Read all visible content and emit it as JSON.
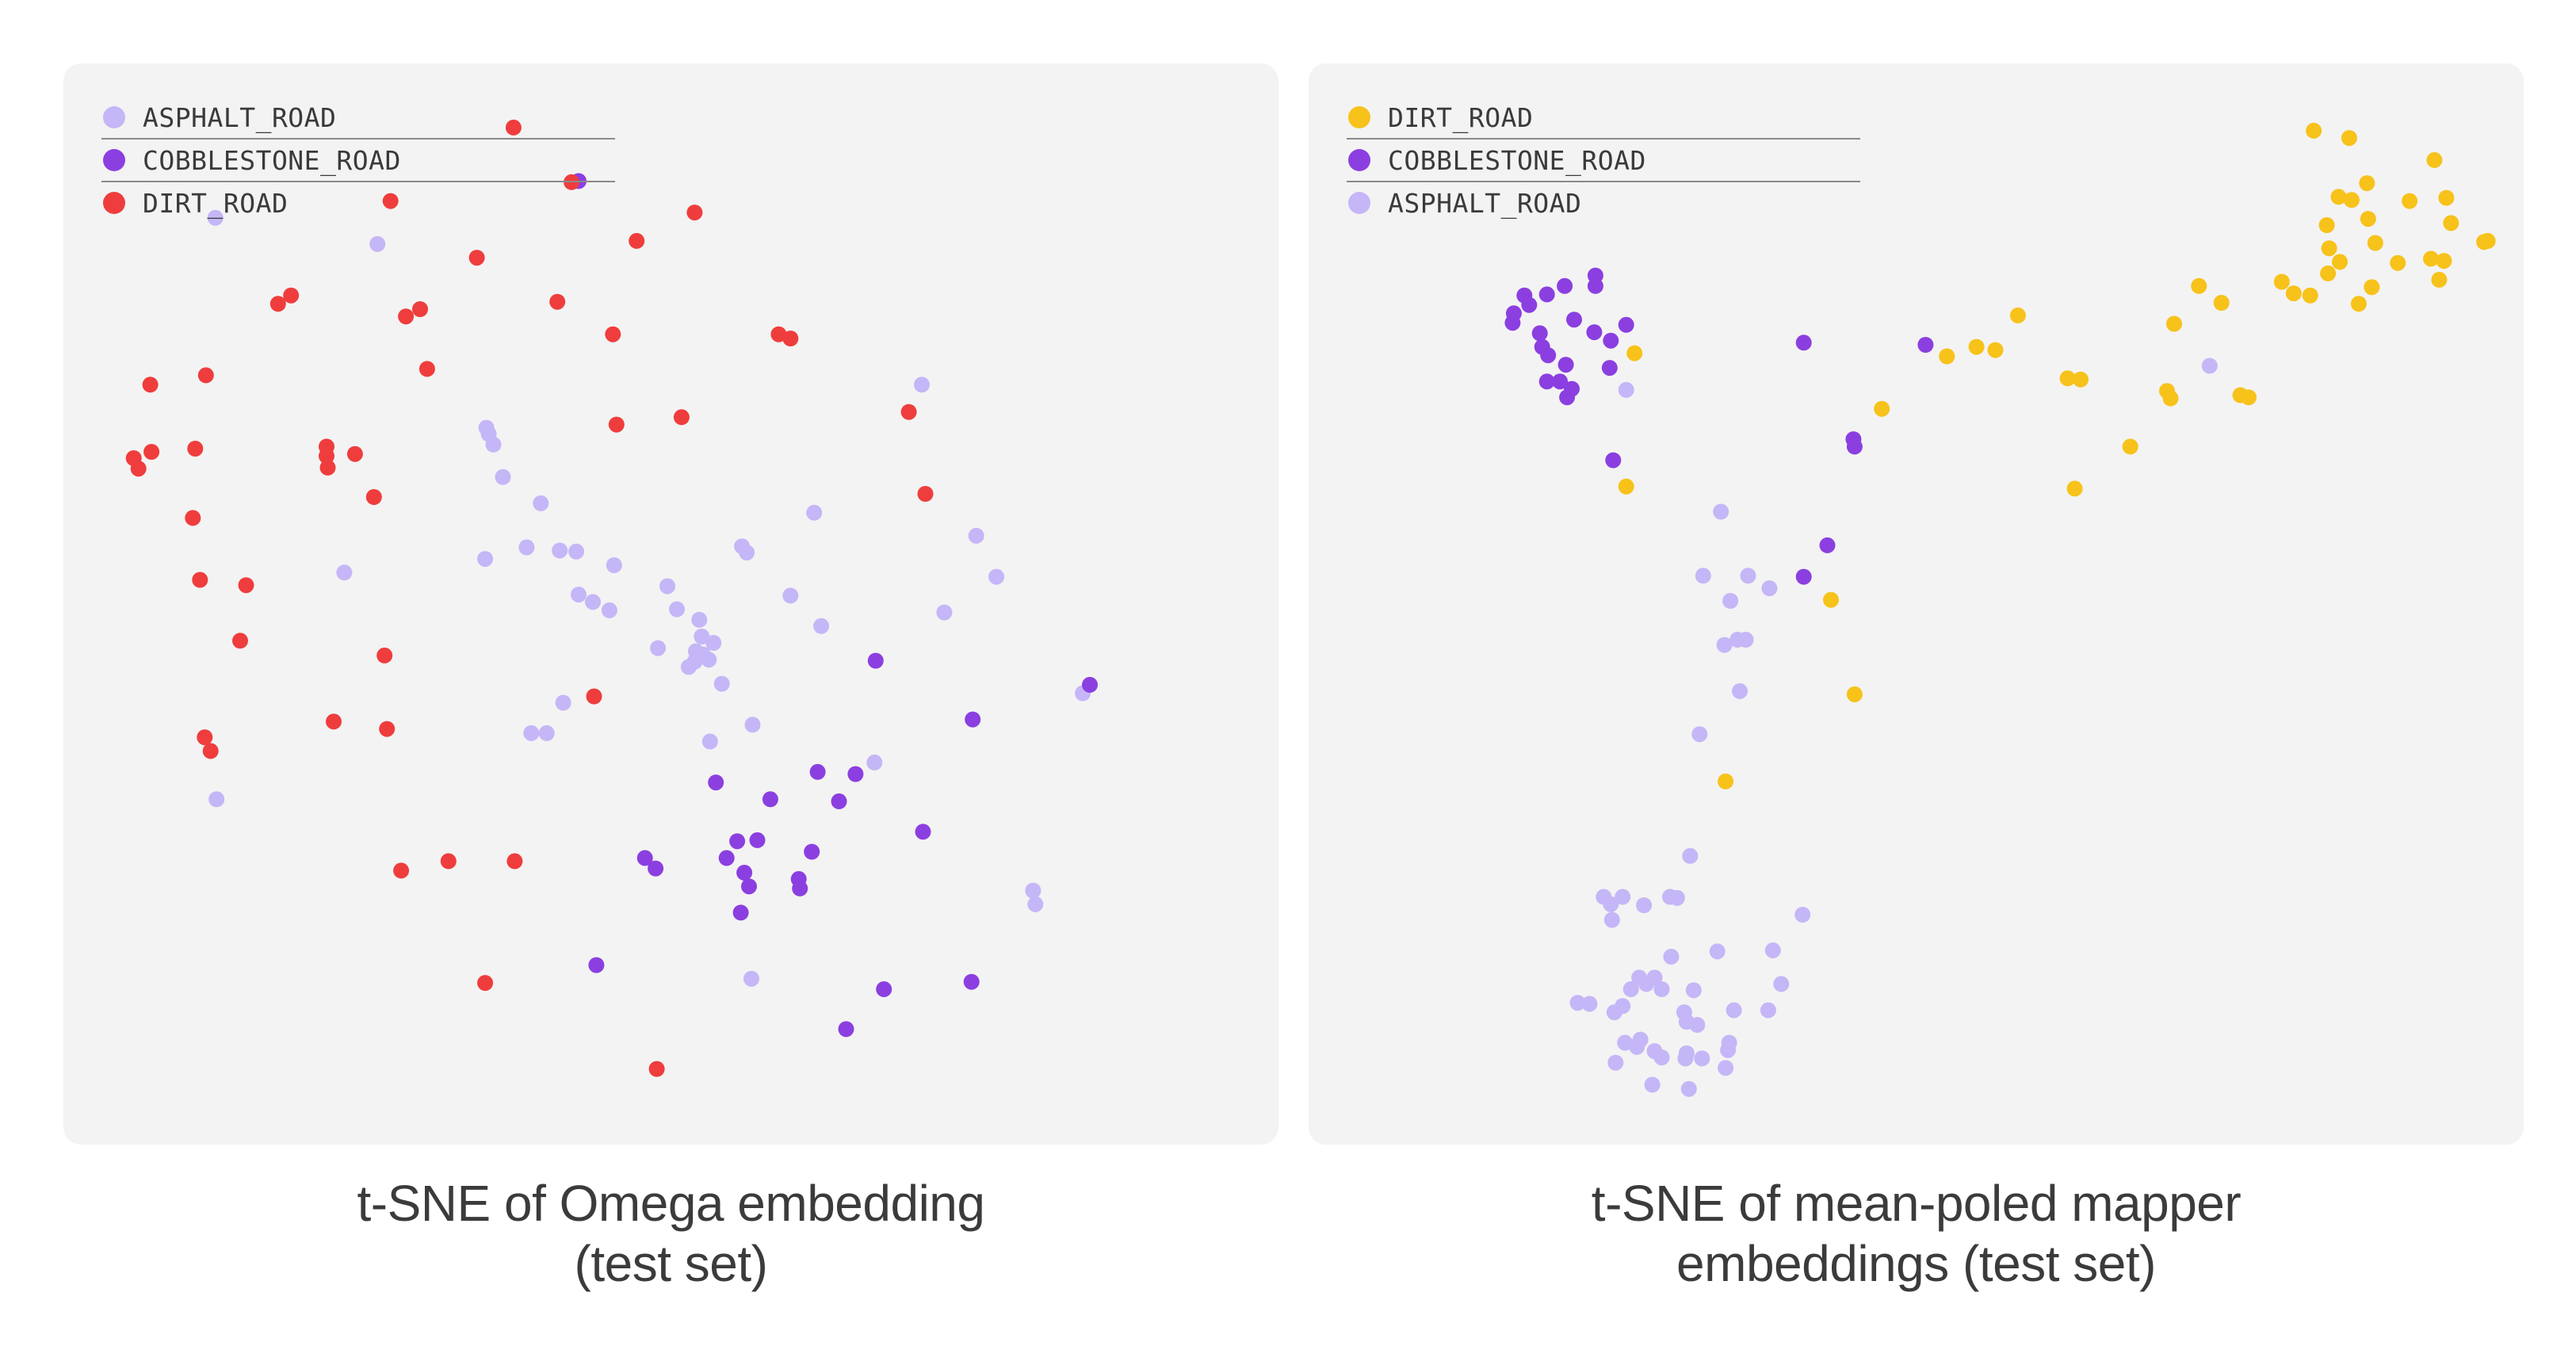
{
  "chart_data": [
    {
      "type": "scatter",
      "title": "",
      "caption_lines": [
        "t-SNE of Omega embedding",
        "(test set)"
      ],
      "xlim": [
        0,
        100
      ],
      "ylim": [
        0,
        100
      ],
      "grid": false,
      "legend": "top-left",
      "series": [
        {
          "name": "ASPHALT_ROAD",
          "color": "#c5b6f7",
          "points": [
            [
              11.5,
              86.8
            ],
            [
              25.2,
              84.3
            ],
            [
              34.4,
              66.8
            ],
            [
              34.6,
              66.2
            ],
            [
              35,
              65.2
            ],
            [
              35.8,
              62.1
            ],
            [
              39,
              59.6
            ],
            [
              37.8,
              55.4
            ],
            [
              40.6,
              55.1
            ],
            [
              42,
              55
            ],
            [
              45.2,
              53.7
            ],
            [
              43.4,
              50.2
            ],
            [
              42.2,
              50.9
            ],
            [
              44.8,
              49.4
            ],
            [
              50.5,
              49.5
            ],
            [
              49.7,
              51.7
            ],
            [
              56,
              55.5
            ],
            [
              56.4,
              54.9
            ],
            [
              60.1,
              50.8
            ],
            [
              52.4,
              48.5
            ],
            [
              52.6,
              46.9
            ],
            [
              52.1,
              45.5
            ],
            [
              53.6,
              46.3
            ],
            [
              34.3,
              54.3
            ],
            [
              22.4,
              53
            ],
            [
              62.1,
              58.7
            ],
            [
              71.2,
              70.9
            ],
            [
              75.8,
              56.5
            ],
            [
              77.5,
              52.6
            ],
            [
              73.1,
              49.2
            ],
            [
              62.7,
              47.9
            ],
            [
              52.7,
              45.2
            ],
            [
              53.2,
              44.7
            ],
            [
              52,
              44.5
            ],
            [
              48.9,
              45.8
            ],
            [
              51.5,
              44
            ],
            [
              54.3,
              42.4
            ],
            [
              40.9,
              40.6
            ],
            [
              38.2,
              37.7
            ],
            [
              39.5,
              37.7
            ],
            [
              53.3,
              36.9
            ],
            [
              56.9,
              38.5
            ],
            [
              67.2,
              34.9
            ],
            [
              11.6,
              31.4
            ],
            [
              80.6,
              22.7
            ],
            [
              80.8,
              21.4
            ],
            [
              56.8,
              14.3
            ],
            [
              84.8,
              41.5
            ]
          ]
        },
        {
          "name": "COBBLESTONE_ROAD",
          "color": "#8b3fe0",
          "points": [
            [
              42.2,
              90.3
            ],
            [
              67.3,
              44.6
            ],
            [
              75.5,
              39
            ],
            [
              85.4,
              42.3
            ],
            [
              62.4,
              34
            ],
            [
              65.6,
              33.8
            ],
            [
              53.8,
              33
            ],
            [
              58.4,
              31.4
            ],
            [
              64.2,
              31.2
            ],
            [
              71.3,
              28.3
            ],
            [
              55.6,
              27.4
            ],
            [
              57.3,
              27.5
            ],
            [
              61.9,
              26.4
            ],
            [
              47.8,
              25.8
            ],
            [
              48.7,
              24.8
            ],
            [
              54.7,
              25.8
            ],
            [
              56.2,
              24.4
            ],
            [
              56.6,
              23.1
            ],
            [
              60.8,
              23.8
            ],
            [
              60.9,
              22.9
            ],
            [
              55.9,
              20.6
            ],
            [
              43.7,
              15.6
            ],
            [
              68,
              13.3
            ],
            [
              75.4,
              14
            ],
            [
              64.8,
              9.5
            ]
          ]
        },
        {
          "name": "DIRT_ROAD",
          "color": "#ef3d3d",
          "points": [
            [
              36.7,
              95.4
            ],
            [
              41.6,
              90.2
            ],
            [
              26.3,
              88.4
            ],
            [
              52,
              87.3
            ],
            [
              47.1,
              84.6
            ],
            [
              33.6,
              83
            ],
            [
              17.9,
              79.4
            ],
            [
              16.8,
              78.6
            ],
            [
              40.4,
              78.8
            ],
            [
              28.8,
              78.1
            ],
            [
              27.6,
              77.4
            ],
            [
              45.1,
              75.7
            ],
            [
              59.1,
              75.7
            ],
            [
              60.1,
              75.3
            ],
            [
              29.4,
              72.4
            ],
            [
              10.7,
              71.8
            ],
            [
              6,
              70.9
            ],
            [
              70.1,
              68.3
            ],
            [
              50.9,
              67.8
            ],
            [
              45.4,
              67.1
            ],
            [
              20.9,
              65
            ],
            [
              20.9,
              64.1
            ],
            [
              23.3,
              64.3
            ],
            [
              9.8,
              64.8
            ],
            [
              6.1,
              64.5
            ],
            [
              4.6,
              63.9
            ],
            [
              5,
              62.9
            ],
            [
              21,
              63
            ],
            [
              24.9,
              60.2
            ],
            [
              71.5,
              60.5
            ],
            [
              9.6,
              58.2
            ],
            [
              10.2,
              52.3
            ],
            [
              14.1,
              51.8
            ],
            [
              13.6,
              46.5
            ],
            [
              25.8,
              45.1
            ],
            [
              43.5,
              41.2
            ],
            [
              21.5,
              38.8
            ],
            [
              26,
              38.1
            ],
            [
              10.6,
              37.3
            ],
            [
              11.1,
              36
            ],
            [
              27.2,
              24.6
            ],
            [
              31.2,
              25.5
            ],
            [
              36.8,
              25.5
            ],
            [
              34.3,
              13.9
            ],
            [
              48.8,
              5.7
            ]
          ]
        }
      ]
    },
    {
      "type": "scatter",
      "title": "",
      "caption_lines": [
        "t-SNE of mean-poled mapper",
        "embeddings (test set)"
      ],
      "xlim": [
        0,
        100
      ],
      "ylim": [
        0,
        100
      ],
      "grid": false,
      "legend": "top-left",
      "series": [
        {
          "name": "DIRT_ROAD",
          "color": "#f7c21a",
          "points": [
            [
              83.6,
              95.1
            ],
            [
              86.6,
              94.4
            ],
            [
              93.8,
              92.3
            ],
            [
              88.1,
              90.1
            ],
            [
              85.7,
              88.8
            ],
            [
              86.8,
              88.5
            ],
            [
              91.7,
              88.4
            ],
            [
              94.8,
              88.7
            ],
            [
              88.2,
              86.7
            ],
            [
              95.2,
              86.3
            ],
            [
              84.7,
              86.1
            ],
            [
              88.8,
              84.4
            ],
            [
              98,
              84.5
            ],
            [
              98.3,
              84.6
            ],
            [
              84.9,
              83.9
            ],
            [
              93.5,
              82.9
            ],
            [
              90.7,
              82.5
            ],
            [
              94.6,
              82.7
            ],
            [
              85.8,
              82.6
            ],
            [
              84.8,
              81.5
            ],
            [
              80.9,
              80.7
            ],
            [
              94.2,
              80.9
            ],
            [
              88.5,
              80.2
            ],
            [
              81.9,
              79.6
            ],
            [
              83.3,
              79.4
            ],
            [
              87.4,
              78.6
            ],
            [
              73.9,
              80.3
            ],
            [
              75.8,
              78.7
            ],
            [
              58.6,
              77.5
            ],
            [
              71.8,
              76.7
            ],
            [
              55.1,
              74.5
            ],
            [
              56.7,
              74.2
            ],
            [
              52.6,
              73.6
            ],
            [
              62.8,
              71.5
            ],
            [
              63.9,
              71.4
            ],
            [
              71.5,
              69.6
            ],
            [
              71.2,
              70.3
            ],
            [
              77.4,
              69.9
            ],
            [
              78.1,
              69.7
            ],
            [
              47.1,
              68.6
            ],
            [
              68.1,
              65
            ],
            [
              63.4,
              61
            ],
            [
              26.2,
              73.9
            ],
            [
              25.5,
              61.2
            ],
            [
              42.8,
              50.4
            ],
            [
              44.8,
              41.4
            ],
            [
              33.9,
              33.1
            ]
          ]
        },
        {
          "name": "COBBLESTONE_ROAD",
          "color": "#8b3fe0",
          "points": [
            [
              22.9,
              81.3
            ],
            [
              22.9,
              80.3
            ],
            [
              20.3,
              80.3
            ],
            [
              16.9,
              79.4
            ],
            [
              18.8,
              79.5
            ],
            [
              17.3,
              78.5
            ],
            [
              16,
              77.7
            ],
            [
              15.9,
              76.8
            ],
            [
              21.1,
              77.1
            ],
            [
              25.5,
              76.6
            ],
            [
              22.8,
              75.9
            ],
            [
              24.2,
              75.1
            ],
            [
              18.2,
              75.8
            ],
            [
              18.4,
              74.5
            ],
            [
              18.9,
              73.7
            ],
            [
              24.1,
              72.5
            ],
            [
              20.4,
              72.8
            ],
            [
              19.9,
              71.2
            ],
            [
              18.8,
              71.2
            ],
            [
              20.9,
              70.5
            ],
            [
              20.5,
              69.7
            ],
            [
              40.5,
              74.9
            ],
            [
              50.8,
              74.7
            ],
            [
              44.7,
              65.7
            ],
            [
              44.8,
              65
            ],
            [
              24.4,
              63.7
            ],
            [
              42.5,
              55.6
            ],
            [
              40.5,
              52.6
            ]
          ]
        },
        {
          "name": "ASPHALT_ROAD",
          "color": "#c5b6f7",
          "points": [
            [
              74.8,
              72.7
            ],
            [
              25.5,
              70.4
            ],
            [
              33.5,
              58.8
            ],
            [
              32,
              52.7
            ],
            [
              35.8,
              52.7
            ],
            [
              37.6,
              51.5
            ],
            [
              34.3,
              50.3
            ],
            [
              34.9,
              46.6
            ],
            [
              35.6,
              46.6
            ],
            [
              33.8,
              46.1
            ],
            [
              35.1,
              41.7
            ],
            [
              31.7,
              37.6
            ],
            [
              30.9,
              26
            ],
            [
              23.6,
              22.1
            ],
            [
              25.2,
              22.1
            ],
            [
              29.2,
              22.1
            ],
            [
              29.8,
              22
            ],
            [
              27,
              21.3
            ],
            [
              24.2,
              21.4
            ],
            [
              40.4,
              20.4
            ],
            [
              24.3,
              19.9
            ],
            [
              33.2,
              16.9
            ],
            [
              29.3,
              16.4
            ],
            [
              37.9,
              17
            ],
            [
              26.6,
              14.4
            ],
            [
              27.9,
              14.4
            ],
            [
              27.2,
              13.8
            ],
            [
              28.5,
              13.3
            ],
            [
              38.6,
              13.8
            ],
            [
              31.2,
              13.2
            ],
            [
              25.9,
              13.3
            ],
            [
              24.5,
              11.1
            ],
            [
              22.4,
              11.9
            ],
            [
              21.4,
              12
            ],
            [
              25.2,
              11.7
            ],
            [
              37.5,
              11.3
            ],
            [
              34.6,
              11.3
            ],
            [
              30.4,
              11.1
            ],
            [
              30.6,
              10.2
            ],
            [
              31.5,
              9.9
            ],
            [
              34.2,
              8.2
            ],
            [
              26.7,
              8.5
            ],
            [
              25.4,
              8.2
            ],
            [
              26.4,
              7.8
            ],
            [
              30.6,
              7.2
            ],
            [
              27.9,
              7.4
            ],
            [
              31.9,
              6.7
            ],
            [
              34.1,
              7.5
            ],
            [
              28.5,
              6.8
            ],
            [
              30.5,
              6.7
            ],
            [
              33.9,
              5.8
            ],
            [
              24.6,
              6.3
            ],
            [
              27.7,
              4.2
            ],
            [
              30.8,
              3.8
            ]
          ]
        }
      ]
    }
  ]
}
